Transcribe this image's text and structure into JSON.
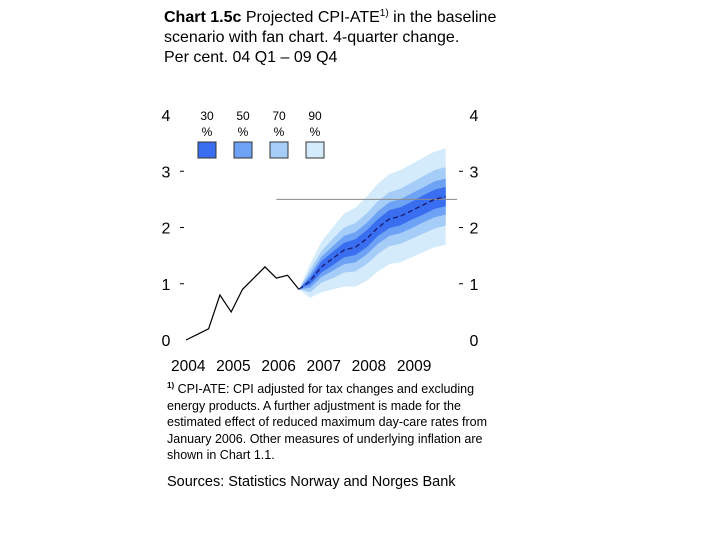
{
  "title": {
    "label": "Chart 1.5c",
    "text": "Projected CPI-ATE",
    "superscript": "1)",
    "rest": "in the baseline scenario with fan chart. 4-quarter change.",
    "line2": "Per cent. 04 Q1 – 09 Q4"
  },
  "chart_data": {
    "type": "line",
    "ylim": [
      0,
      4
    ],
    "yticks": [
      "0",
      "1",
      "2",
      "3",
      "4"
    ],
    "xticks": [
      "2004",
      "2005",
      "2006",
      "2007",
      "2008",
      "2009"
    ],
    "xlim": [
      2004.0,
      2010.0
    ],
    "reference_line": 2.5,
    "fan_legend": [
      {
        "label": "30",
        "unit": "%",
        "color": "#3a6ef0"
      },
      {
        "label": "50",
        "unit": "%",
        "color": "#6ea2f4"
      },
      {
        "label": "70",
        "unit": "%",
        "color": "#a6cdf8"
      },
      {
        "label": "90",
        "unit": "%",
        "color": "#d4ebfc"
      }
    ],
    "historical": {
      "x": [
        2004.0,
        2004.25,
        2004.5,
        2004.75,
        2005.0,
        2005.25,
        2005.5,
        2005.75,
        2006.0,
        2006.25,
        2006.5
      ],
      "y": [
        0.0,
        0.1,
        0.2,
        0.8,
        0.5,
        0.9,
        1.1,
        1.3,
        1.1,
        1.15,
        0.9
      ]
    },
    "projection": {
      "x": [
        2006.5,
        2006.75,
        2007.0,
        2007.25,
        2007.5,
        2007.75,
        2008.0,
        2008.25,
        2008.5,
        2008.75,
        2009.0,
        2009.25,
        2009.5,
        2009.75
      ],
      "y": [
        0.9,
        1.05,
        1.3,
        1.45,
        1.6,
        1.65,
        1.8,
        2.0,
        2.15,
        2.2,
        2.3,
        2.4,
        2.5,
        2.55
      ]
    },
    "fan_half_widths": {
      "w30": [
        0.0,
        0.06,
        0.1,
        0.12,
        0.13,
        0.14,
        0.15,
        0.15,
        0.16,
        0.16,
        0.16,
        0.17,
        0.17,
        0.17
      ],
      "w50": [
        0.0,
        0.12,
        0.18,
        0.22,
        0.25,
        0.27,
        0.28,
        0.29,
        0.3,
        0.3,
        0.31,
        0.31,
        0.32,
        0.32
      ],
      "w70": [
        0.0,
        0.2,
        0.28,
        0.35,
        0.4,
        0.43,
        0.45,
        0.47,
        0.48,
        0.49,
        0.5,
        0.51,
        0.52,
        0.52
      ],
      "w90": [
        0.0,
        0.3,
        0.45,
        0.55,
        0.65,
        0.7,
        0.75,
        0.78,
        0.8,
        0.82,
        0.83,
        0.84,
        0.85,
        0.86
      ]
    }
  },
  "footnote": {
    "marker": "1)",
    "text": "CPI-ATE: CPI adjusted for tax changes and excluding energy products. A further adjustment is made for the estimated effect of reduced maximum day-care rates from January 2006. Other measures of underlying inflation are shown in Chart 1.1."
  },
  "sources": "Sources: Statistics Norway and Norges Bank"
}
